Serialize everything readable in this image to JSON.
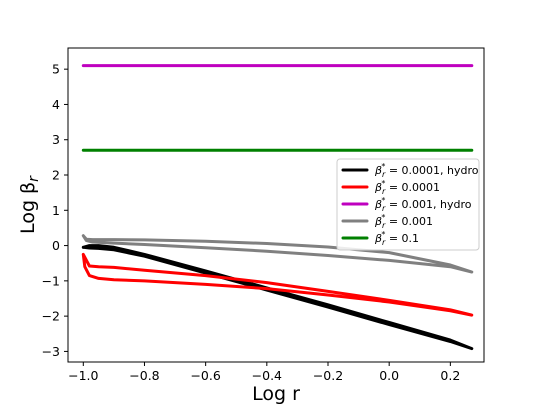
{
  "chart_data": {
    "type": "line",
    "xlabel": "Log r",
    "ylabel_main": "Log β",
    "ylabel_sub": "r",
    "xlim": [
      -1.05,
      0.31
    ],
    "ylim": [
      -3.3,
      5.6
    ],
    "xticks": [
      -1.0,
      -0.8,
      -0.6,
      -0.4,
      -0.2,
      0.0,
      0.2
    ],
    "xtick_labels": [
      "−1.0",
      "−0.8",
      "−0.6",
      "−0.4",
      "−0.2",
      "0.0",
      "0.2"
    ],
    "yticks": [
      -3,
      -2,
      -1,
      0,
      1,
      2,
      3,
      4,
      5
    ],
    "ytick_labels": [
      "−3",
      "−2",
      "−1",
      "0",
      "1",
      "2",
      "3",
      "4",
      "5"
    ],
    "legend_position": "center-right",
    "series": [
      {
        "name": "β_r^* = 0.0001, hydro",
        "legend": {
          "sym": "β",
          "sub": "r",
          "sup": "*",
          "rest": " = 0.0001, hydro"
        },
        "color": "#000000",
        "x": [
          -1.0,
          -0.98,
          -0.95,
          -0.9,
          -0.8,
          -0.6,
          -0.4,
          -0.2,
          0.0,
          0.2,
          0.27,
          0.2,
          0.0,
          -0.2,
          -0.4,
          -0.6,
          -0.8,
          -0.9,
          -0.95,
          -0.98,
          -1.0
        ],
        "y": [
          -0.05,
          0.0,
          0.0,
          -0.05,
          -0.25,
          -0.72,
          -1.2,
          -1.68,
          -2.18,
          -2.68,
          -2.92,
          -2.72,
          -2.24,
          -1.74,
          -1.26,
          -0.78,
          -0.3,
          -0.12,
          -0.08,
          -0.07,
          -0.05
        ]
      },
      {
        "name": "β_r^* = 0.0001",
        "legend": {
          "sym": "β",
          "sub": "r",
          "sup": "*",
          "rest": " = 0.0001"
        },
        "color": "#ff0000",
        "x": [
          -1.0,
          -0.995,
          -0.98,
          -0.95,
          -0.9,
          -0.8,
          -0.6,
          -0.4,
          -0.2,
          0.0,
          0.2,
          0.27,
          0.2,
          0.0,
          -0.2,
          -0.4,
          -0.6,
          -0.8,
          -0.9,
          -0.95,
          -0.98,
          -1.0
        ],
        "y": [
          -0.25,
          -0.6,
          -0.85,
          -0.93,
          -0.97,
          -1.0,
          -1.1,
          -1.22,
          -1.4,
          -1.6,
          -1.85,
          -1.97,
          -1.82,
          -1.55,
          -1.3,
          -1.05,
          -0.85,
          -0.7,
          -0.62,
          -0.6,
          -0.58,
          -0.25
        ]
      },
      {
        "name": "β_r^* = 0.001, hydro",
        "legend": {
          "sym": "β",
          "sub": "r",
          "sup": "*",
          "rest": " = 0.001, hydro"
        },
        "color": "#bf00bf",
        "x": [
          -1.0,
          0.27
        ],
        "y": [
          5.1,
          5.1
        ]
      },
      {
        "name": "β_r^* = 0.001",
        "legend": {
          "sym": "β",
          "sub": "r",
          "sup": "*",
          "rest": " = 0.001"
        },
        "color": "#808080",
        "x": [
          -1.0,
          -0.99,
          -0.97,
          -0.9,
          -0.8,
          -0.6,
          -0.4,
          -0.2,
          0.0,
          0.2,
          0.27,
          0.2,
          0.0,
          -0.2,
          -0.4,
          -0.6,
          -0.8,
          -0.9,
          -0.97,
          -0.99,
          -1.0
        ],
        "y": [
          0.28,
          0.18,
          0.17,
          0.17,
          0.16,
          0.12,
          0.06,
          -0.04,
          -0.2,
          -0.55,
          -0.75,
          -0.6,
          -0.42,
          -0.28,
          -0.16,
          -0.06,
          0.03,
          0.07,
          0.1,
          0.14,
          0.28
        ]
      },
      {
        "name": "β_r^* = 0.1",
        "legend": {
          "sym": "β",
          "sub": "r",
          "sup": "*",
          "rest": " = 0.1"
        },
        "color": "#008000",
        "x": [
          -1.0,
          0.27
        ],
        "y": [
          2.7,
          2.7
        ]
      }
    ],
    "legend_order": [
      0,
      1,
      2,
      3,
      4
    ]
  }
}
